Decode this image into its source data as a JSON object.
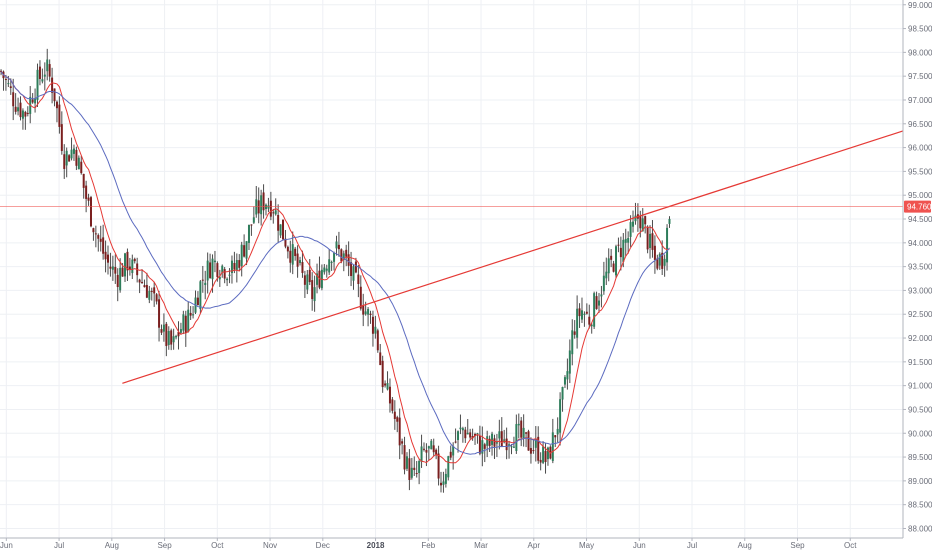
{
  "chart_data": {
    "type": "candlestick",
    "instrument_hint": "",
    "yaxis": {
      "ticks": [
        "88.000",
        "88.500",
        "89.000",
        "89.500",
        "90.000",
        "90.500",
        "91.000",
        "91.500",
        "92.000",
        "92.500",
        "93.000",
        "93.500",
        "94.000",
        "94.500",
        "95.000",
        "95.500",
        "96.000",
        "96.500",
        "97.000",
        "97.500",
        "98.000",
        "98.500",
        "99.000"
      ],
      "ylim": [
        87.8,
        99.1
      ],
      "position": "right"
    },
    "xaxis": {
      "ticks": [
        {
          "label": "Jun",
          "month_index": 0
        },
        {
          "label": "Jul",
          "month_index": 1
        },
        {
          "label": "Aug",
          "month_index": 2
        },
        {
          "label": "Sep",
          "month_index": 3
        },
        {
          "label": "Oct",
          "month_index": 4
        },
        {
          "label": "Nov",
          "month_index": 5
        },
        {
          "label": "Dec",
          "month_index": 6
        },
        {
          "label": "2018",
          "month_index": 7,
          "emphasis": true
        },
        {
          "label": "Feb",
          "month_index": 8
        },
        {
          "label": "Mar",
          "month_index": 9
        },
        {
          "label": "Apr",
          "month_index": 10
        },
        {
          "label": "May",
          "month_index": 11
        },
        {
          "label": "Jun",
          "month_index": 12
        },
        {
          "label": "Jul",
          "month_index": 13
        },
        {
          "label": "Aug",
          "month_index": 14
        },
        {
          "label": "Sep",
          "month_index": 15
        },
        {
          "label": "Oct",
          "month_index": 16
        }
      ],
      "xlim": [
        -0.12,
        17.0
      ]
    },
    "grid": true,
    "last_price": {
      "value": 94.76,
      "label": "94.760",
      "color": "#ef5350"
    },
    "moving_averages": [
      {
        "color": "#e53935"
      },
      {
        "color": "#5c6bc0"
      }
    ],
    "trendlines": [
      {
        "color": "#e53935",
        "x1": 2.2,
        "y1": 91.05,
        "x2": 17.0,
        "y2": 96.35
      }
    ],
    "ohlc_anchor_closes": [
      [
        -0.1,
        97.6
      ],
      [
        0.15,
        97.0
      ],
      [
        0.35,
        96.7
      ],
      [
        0.55,
        97.3
      ],
      [
        0.75,
        97.7
      ],
      [
        0.9,
        97.2
      ],
      [
        1.1,
        95.8
      ],
      [
        1.3,
        96.0
      ],
      [
        1.5,
        95.0
      ],
      [
        1.7,
        94.2
      ],
      [
        1.9,
        93.6
      ],
      [
        2.1,
        93.3
      ],
      [
        2.3,
        93.6
      ],
      [
        2.5,
        93.3
      ],
      [
        2.7,
        93.0
      ],
      [
        2.85,
        92.6
      ],
      [
        3.0,
        92.0
      ],
      [
        3.15,
        91.8
      ],
      [
        3.3,
        92.2
      ],
      [
        3.5,
        92.5
      ],
      [
        3.7,
        93.2
      ],
      [
        3.9,
        93.6
      ],
      [
        4.1,
        93.5
      ],
      [
        4.3,
        93.4
      ],
      [
        4.5,
        93.9
      ],
      [
        4.7,
        94.6
      ],
      [
        4.9,
        94.9
      ],
      [
        5.05,
        94.8
      ],
      [
        5.2,
        94.3
      ],
      [
        5.4,
        93.8
      ],
      [
        5.6,
        93.3
      ],
      [
        5.8,
        92.9
      ],
      [
        6.0,
        93.5
      ],
      [
        6.2,
        93.9
      ],
      [
        6.4,
        93.7
      ],
      [
        6.6,
        93.2
      ],
      [
        6.8,
        92.6
      ],
      [
        7.0,
        92.2
      ],
      [
        7.15,
        91.0
      ],
      [
        7.3,
        90.6
      ],
      [
        7.45,
        89.9
      ],
      [
        7.6,
        89.3
      ],
      [
        7.75,
        89.0
      ],
      [
        7.9,
        89.6
      ],
      [
        8.05,
        89.6
      ],
      [
        8.25,
        89.0
      ],
      [
        8.45,
        89.7
      ],
      [
        8.65,
        90.1
      ],
      [
        8.85,
        89.9
      ],
      [
        9.05,
        89.7
      ],
      [
        9.25,
        89.8
      ],
      [
        9.45,
        89.9
      ],
      [
        9.65,
        90.0
      ],
      [
        9.85,
        89.8
      ],
      [
        10.05,
        89.7
      ],
      [
        10.25,
        89.4
      ],
      [
        10.45,
        90.2
      ],
      [
        10.6,
        91.0
      ],
      [
        10.75,
        92.2
      ],
      [
        10.9,
        92.6
      ],
      [
        11.05,
        92.4
      ],
      [
        11.25,
        93.0
      ],
      [
        11.45,
        93.5
      ],
      [
        11.65,
        93.9
      ],
      [
        11.85,
        94.2
      ],
      [
        12.0,
        94.6
      ],
      [
        12.15,
        94.1
      ],
      [
        12.3,
        93.6
      ],
      [
        12.45,
        93.7
      ],
      [
        12.6,
        94.8
      ]
    ]
  }
}
